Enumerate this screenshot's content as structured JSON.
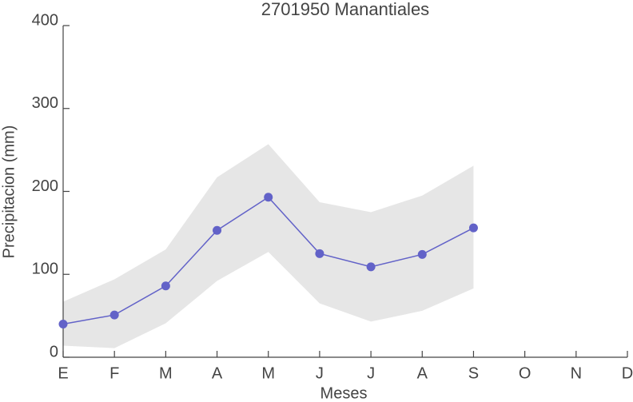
{
  "chart_data": {
    "type": "line",
    "title": "2701950 Manantiales",
    "x_label": "Meses",
    "y_label": "Precipitacion (mm)",
    "categories": [
      "E",
      "F",
      "M",
      "A",
      "M",
      "J",
      "J",
      "A",
      "S",
      "O",
      "N",
      "D"
    ],
    "series": [
      {
        "color": "#6262c8",
        "values": [
          40,
          51,
          86,
          153,
          193,
          125,
          109,
          124,
          156,
          null,
          null,
          null
        ]
      }
    ],
    "band": {
      "color": "#e6e6e6",
      "upper": [
        67,
        94,
        130,
        217,
        257,
        187,
        175,
        195,
        231,
        null,
        null,
        null
      ],
      "lower": [
        14,
        11,
        41,
        92,
        127,
        65,
        43,
        56,
        83,
        null,
        null,
        null
      ]
    },
    "ylim": [
      0,
      400
    ],
    "yticks": [
      0,
      100,
      200,
      300,
      400
    ]
  }
}
